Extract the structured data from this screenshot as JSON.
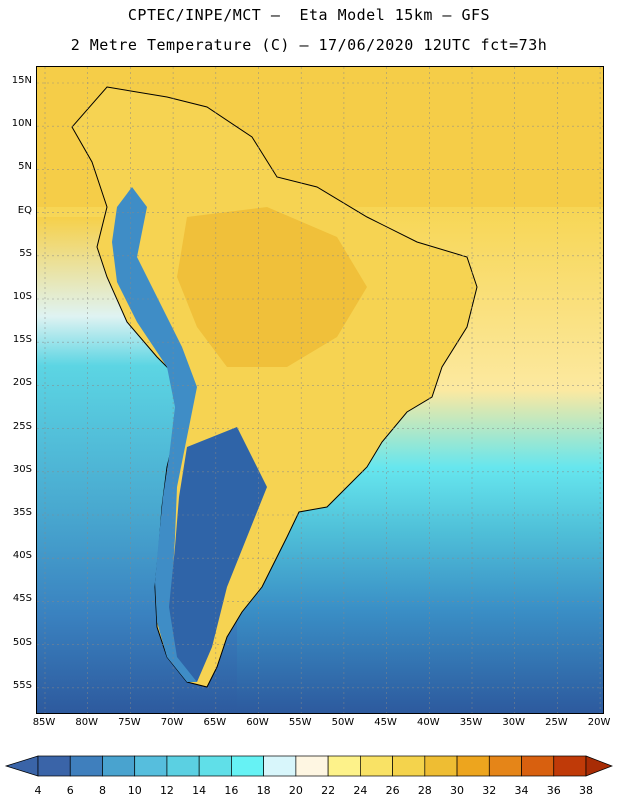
{
  "title_line1": "CPTEC/INPE/MCT –  Eta Model 15km – GFS",
  "title_line2": "2 Metre Temperature (C) – 17/06/2020 12UTC fct=73h",
  "lat_labels": [
    "15N",
    "10N",
    "5N",
    "EQ",
    "5S",
    "10S",
    "15S",
    "20S",
    "25S",
    "30S",
    "35S",
    "40S",
    "45S",
    "50S",
    "55S"
  ],
  "lon_labels": [
    "85W",
    "80W",
    "75W",
    "70W",
    "65W",
    "60W",
    "55W",
    "50W",
    "45W",
    "40W",
    "35W",
    "30W",
    "25W",
    "20W"
  ],
  "colorbar": {
    "ticks": [
      "4",
      "6",
      "8",
      "10",
      "12",
      "14",
      "16",
      "18",
      "20",
      "22",
      "24",
      "26",
      "28",
      "30",
      "32",
      "34",
      "36",
      "38"
    ],
    "colors": [
      "#3a64a8",
      "#3f7fbd",
      "#49a3cf",
      "#56bedd",
      "#5bd0e2",
      "#60dfe8",
      "#66f2f4",
      "#d8f6fb",
      "#fef6e2",
      "#fdf28a",
      "#f9e265",
      "#f4d34c",
      "#eebd33",
      "#eda51e",
      "#e58518",
      "#d8600f",
      "#c03a08",
      "#a82c05"
    ]
  },
  "map_colors": {
    "ocean_cold": "#2d5a9e",
    "ocean_mid": "#3a8fc6",
    "ocean_cool": "#4fb8d6",
    "ocean_light": "#62dbe6",
    "ocean_warm": "#fdf3dc",
    "land_hot": "#f0c33a",
    "land_warm": "#f7d85a",
    "andes": "#4a8fc8"
  }
}
